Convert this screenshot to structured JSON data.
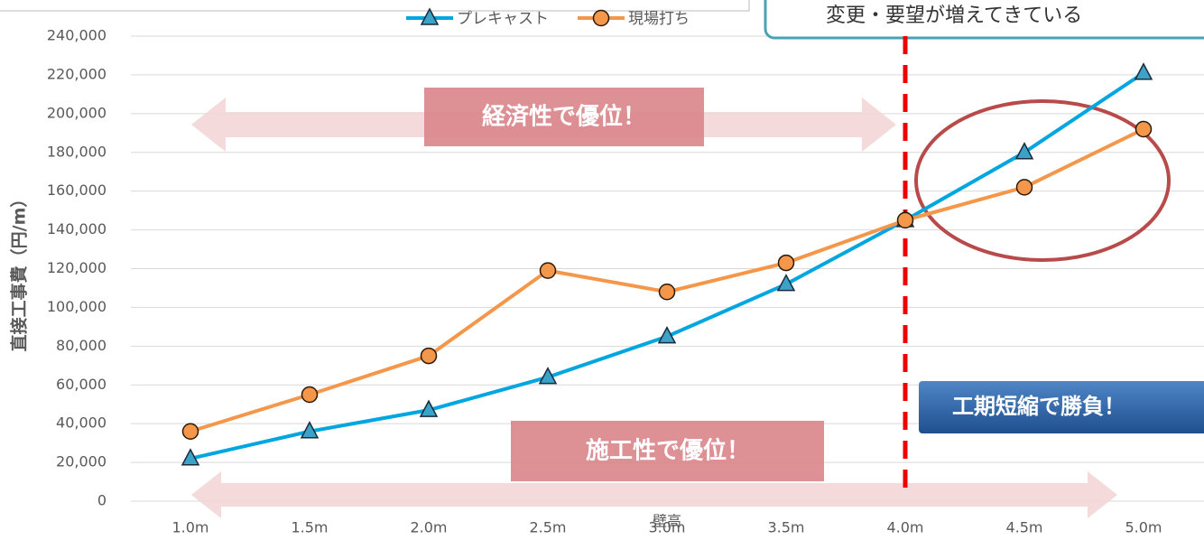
{
  "chart_data": {
    "type": "line",
    "categories": [
      "1.0m",
      "1.5m",
      "2.0m",
      "2.5m",
      "3.0m",
      "3.5m",
      "4.0m",
      "4.5m",
      "5.0m"
    ],
    "series": [
      {
        "name": "プレキャスト",
        "color": "#00a6e0",
        "marker": "triangle",
        "values": [
          22000,
          36000,
          47000,
          64000,
          85000,
          112000,
          145000,
          180000,
          221000
        ]
      },
      {
        "name": "現場打ち",
        "color": "#f4974a",
        "marker": "circle",
        "values": [
          36000,
          55000,
          75000,
          119000,
          108000,
          123000,
          145000,
          162000,
          192000
        ]
      }
    ],
    "ylim": [
      0,
      240000
    ],
    "yticks": [
      0,
      {
        "value": 20000,
        "label": "20,000"
      },
      {
        "value": 40000,
        "label": "40,000"
      },
      {
        "value": 60000,
        "label": "60,000"
      },
      {
        "value": 80000,
        "label": "80,000"
      },
      {
        "value": 100000,
        "label": "100,000"
      },
      {
        "value": 120000,
        "label": "120,000"
      },
      {
        "value": 140000,
        "label": "140,000"
      },
      {
        "value": 160000,
        "label": "160,000"
      },
      {
        "value": 180000,
        "label": "180,000"
      },
      {
        "value": 200000,
        "label": "200,000"
      },
      {
        "value": 220000,
        "label": "220,000"
      },
      {
        "value": 240000,
        "label": "240,000"
      }
    ],
    "ylabel": "直接工事費（円/m）",
    "xlabel": "壁高",
    "grid": true,
    "annotations": [
      "経済性で優位！",
      "施工性で優位！",
      "工期短縮で勝負！",
      "変更・要望が増えてきている"
    ]
  }
}
